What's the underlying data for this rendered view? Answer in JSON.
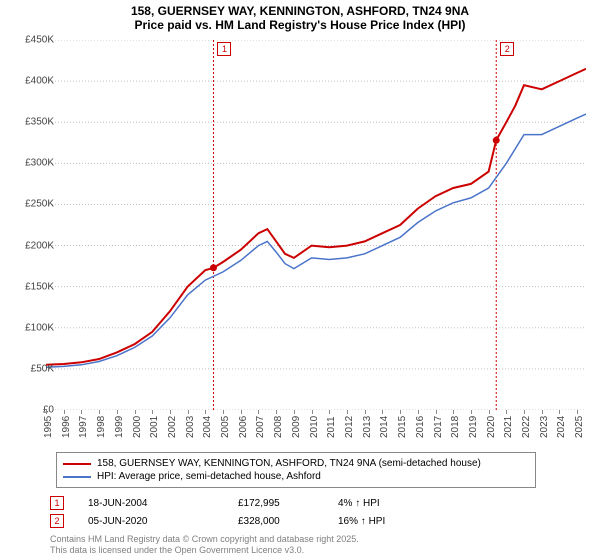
{
  "title": {
    "line1": "158, GUERNSEY WAY, KENNINGTON, ASHFORD, TN24 9NA",
    "line2": "Price paid vs. HM Land Registry's House Price Index (HPI)",
    "fontsize": 12
  },
  "chart": {
    "type": "line",
    "background_color": "#ffffff",
    "grid_color": "#c0c0c0",
    "xlim": [
      1995,
      2025.5
    ],
    "ylim": [
      0,
      450000
    ],
    "ytick_step": 50000,
    "ytick_labels": [
      "£0",
      "£50K",
      "£100K",
      "£150K",
      "£200K",
      "£250K",
      "£300K",
      "£350K",
      "£400K",
      "£450K"
    ],
    "xtick_step": 1,
    "xtick_labels": [
      "1995",
      "1996",
      "1997",
      "1998",
      "1999",
      "2000",
      "2001",
      "2002",
      "2003",
      "2004",
      "2005",
      "2006",
      "2007",
      "2008",
      "2009",
      "2010",
      "2011",
      "2012",
      "2013",
      "2014",
      "2015",
      "2016",
      "2017",
      "2018",
      "2019",
      "2020",
      "2021",
      "2022",
      "2023",
      "2024",
      "2025"
    ],
    "label_fontsize": 10,
    "series": [
      {
        "name": "property",
        "label": "158, GUERNSEY WAY, KENNINGTON, ASHFORD, TN24 9NA (semi-detached house)",
        "color": "#cc0000",
        "line_width": 2,
        "x": [
          1995,
          1996,
          1997,
          1998,
          1999,
          2000,
          2001,
          2002,
          2003,
          2004,
          2004.46,
          2005,
          2006,
          2007,
          2007.5,
          2008,
          2008.5,
          2009,
          2010,
          2011,
          2012,
          2013,
          2014,
          2015,
          2016,
          2017,
          2018,
          2019,
          2020,
          2020.43,
          2021,
          2021.5,
          2022,
          2023,
          2024,
          2025,
          2025.5
        ],
        "y": [
          55000,
          56000,
          58000,
          62000,
          70000,
          80000,
          95000,
          120000,
          150000,
          170000,
          172995,
          180000,
          195000,
          215000,
          220000,
          205000,
          190000,
          185000,
          200000,
          198000,
          200000,
          205000,
          215000,
          225000,
          245000,
          260000,
          270000,
          275000,
          290000,
          328000,
          350000,
          370000,
          395000,
          390000,
          400000,
          410000,
          415000
        ]
      },
      {
        "name": "hpi",
        "label": "HPI: Average price, semi-detached house, Ashford",
        "color": "#4a74c9",
        "line_width": 1.5,
        "x": [
          1995,
          1996,
          1997,
          1998,
          1999,
          2000,
          2001,
          2002,
          2003,
          2004,
          2005,
          2006,
          2007,
          2007.5,
          2008,
          2008.5,
          2009,
          2010,
          2011,
          2012,
          2013,
          2014,
          2015,
          2016,
          2017,
          2018,
          2019,
          2020,
          2021,
          2022,
          2023,
          2024,
          2025,
          2025.5
        ],
        "y": [
          52000,
          53000,
          55000,
          59000,
          66000,
          76000,
          90000,
          112000,
          140000,
          158000,
          168000,
          182000,
          200000,
          205000,
          192000,
          178000,
          172000,
          185000,
          183000,
          185000,
          190000,
          200000,
          210000,
          228000,
          242000,
          252000,
          258000,
          270000,
          300000,
          335000,
          335000,
          345000,
          355000,
          360000
        ]
      }
    ],
    "markers": [
      {
        "n": "1",
        "x": 2004.46,
        "y": 172995,
        "date": "18-JUN-2004",
        "price": "£172,995",
        "pct": "4% ↑ HPI",
        "color": "#cc0000"
      },
      {
        "n": "2",
        "x": 2020.43,
        "y": 328000,
        "date": "05-JUN-2020",
        "price": "£328,000",
        "pct": "16% ↑ HPI",
        "color": "#cc0000"
      }
    ]
  },
  "legend": {
    "border_color": "#888888"
  },
  "attribution": {
    "line1": "Contains HM Land Registry data © Crown copyright and database right 2025.",
    "line2": "This data is licensed under the Open Government Licence v3.0."
  }
}
